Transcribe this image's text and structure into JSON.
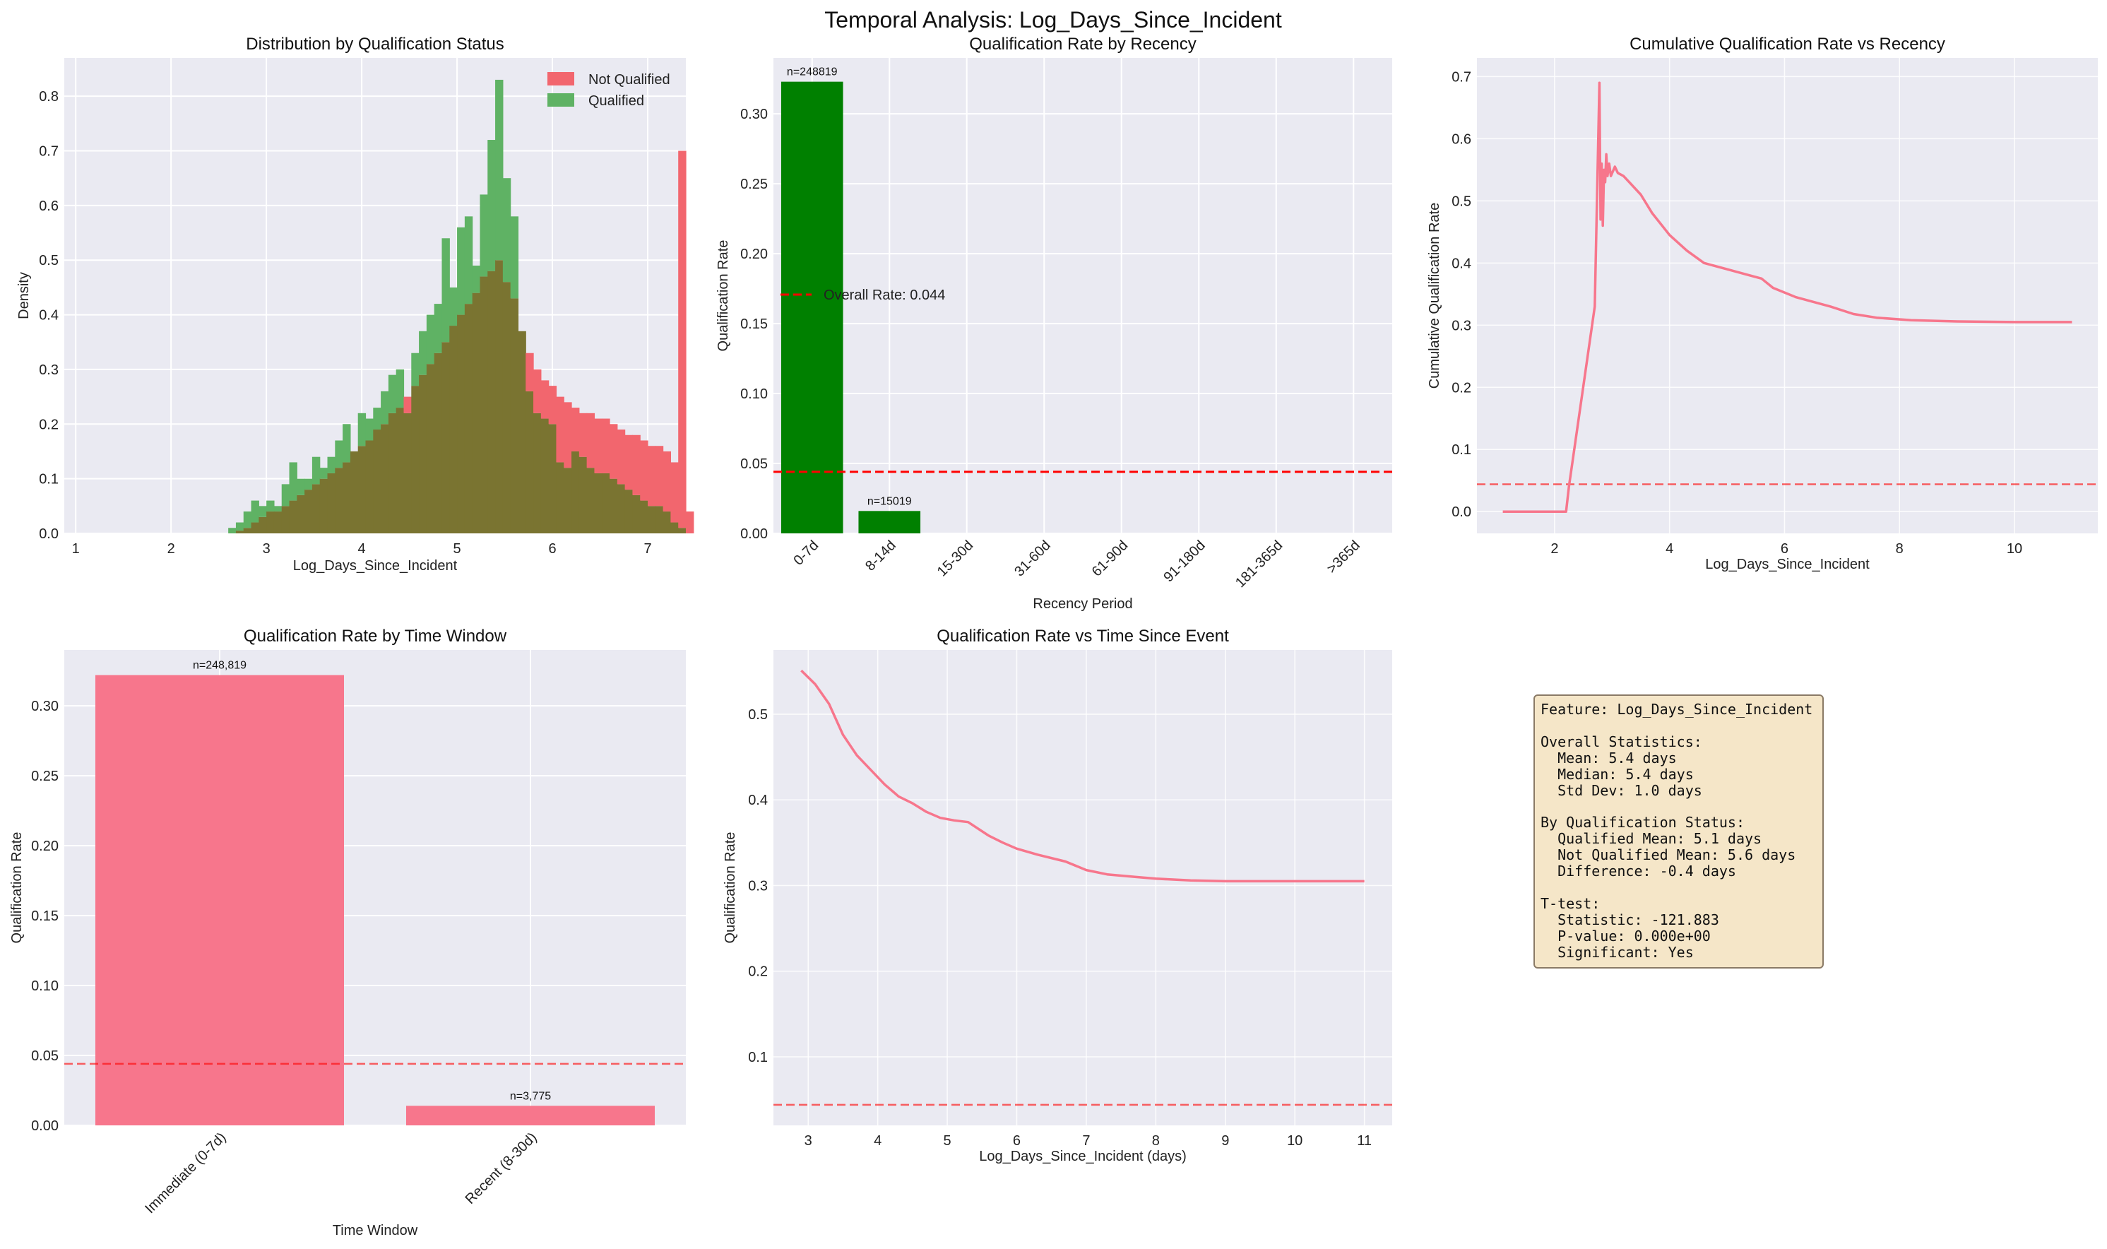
{
  "figure": {
    "title": "Temporal Analysis: Log_Days_Since_Incident",
    "colors": {
      "panel_bg": "#eaeaf2",
      "grid": "#ffffff",
      "pink": "#f7768c",
      "green": "#008000",
      "red": "#ff0000",
      "hist_not_qualified": "#f2666e",
      "hist_qualified": "#5fb264",
      "hist_overlap": "#7a7431",
      "stats_box_bg": "#f5e6c8"
    }
  },
  "chart_data": [
    {
      "id": "distribution",
      "type": "histogram",
      "title": "Distribution by Qualification Status",
      "xlabel": "Log_Days_Since_Incident",
      "ylabel": "Density",
      "xlim": [
        0.88,
        7.4
      ],
      "ylim": [
        0,
        0.87
      ],
      "xticks": [
        1,
        2,
        3,
        4,
        5,
        6,
        7
      ],
      "yticks": [
        0.0,
        0.1,
        0.2,
        0.3,
        0.4,
        0.5,
        0.6,
        0.7,
        0.8
      ],
      "legend_position": "top-right",
      "bin_start": 2.6,
      "bin_width": 0.08,
      "series": [
        {
          "name": "Not Qualified",
          "color": "#f2666e",
          "values": [
            0.0,
            0.005,
            0.01,
            0.02,
            0.03,
            0.04,
            0.04,
            0.05,
            0.06,
            0.07,
            0.08,
            0.09,
            0.1,
            0.11,
            0.12,
            0.13,
            0.15,
            0.16,
            0.17,
            0.19,
            0.2,
            0.22,
            0.23,
            0.25,
            0.27,
            0.29,
            0.31,
            0.33,
            0.35,
            0.38,
            0.4,
            0.42,
            0.44,
            0.47,
            0.48,
            0.5,
            0.46,
            0.43,
            0.37,
            0.33,
            0.3,
            0.28,
            0.27,
            0.25,
            0.24,
            0.23,
            0.22,
            0.22,
            0.21,
            0.21,
            0.2,
            0.19,
            0.18,
            0.18,
            0.17,
            0.16,
            0.16,
            0.15,
            0.13,
            0.7,
            0.04
          ]
        },
        {
          "name": "Qualified",
          "color": "#5fb264",
          "values": [
            0.01,
            0.02,
            0.04,
            0.06,
            0.05,
            0.06,
            0.05,
            0.09,
            0.13,
            0.1,
            0.1,
            0.14,
            0.12,
            0.14,
            0.17,
            0.2,
            0.15,
            0.22,
            0.21,
            0.23,
            0.26,
            0.29,
            0.3,
            0.22,
            0.33,
            0.37,
            0.4,
            0.42,
            0.54,
            0.45,
            0.56,
            0.58,
            0.49,
            0.62,
            0.72,
            0.83,
            0.65,
            0.58,
            0.37,
            0.26,
            0.22,
            0.21,
            0.2,
            0.13,
            0.12,
            0.15,
            0.14,
            0.12,
            0.11,
            0.11,
            0.1,
            0.09,
            0.08,
            0.07,
            0.06,
            0.05,
            0.05,
            0.04,
            0.02,
            0.01,
            0.0
          ]
        }
      ]
    },
    {
      "id": "rate_by_recency",
      "type": "bar",
      "title": "Qualification Rate by Recency",
      "xlabel": "Recency Period",
      "ylabel": "Qualification Rate",
      "categories": [
        "0-7d",
        "8-14d",
        "15-30d",
        "31-60d",
        "61-90d",
        "91-180d",
        "181-365d",
        ">365d"
      ],
      "values": [
        0.323,
        0.016,
        0,
        0,
        0,
        0,
        0,
        0
      ],
      "bar_labels": [
        "n=248819",
        "n=15019",
        "",
        "",
        "",
        "",
        "",
        ""
      ],
      "ylim": [
        0,
        0.34
      ],
      "yticks": [
        0.0,
        0.05,
        0.1,
        0.15,
        0.2,
        0.25,
        0.3
      ],
      "reference_line": {
        "value": 0.044,
        "label": "Overall Rate: 0.044",
        "color": "#ff0000",
        "style": "dashed"
      },
      "legend_position": "center-left",
      "color": "#008000"
    },
    {
      "id": "cumulative_rate",
      "type": "line",
      "title": "Cumulative Qualification Rate vs Recency",
      "xlabel": "Log_Days_Since_Incident",
      "ylabel": "Cumulative Qualification Rate",
      "xlim": [
        0.65,
        11.45
      ],
      "ylim": [
        -0.035,
        0.73
      ],
      "xticks": [
        2,
        4,
        6,
        8,
        10
      ],
      "yticks": [
        0.0,
        0.1,
        0.2,
        0.3,
        0.4,
        0.5,
        0.6,
        0.7
      ],
      "reference_line": {
        "value": 0.044,
        "style": "dashed"
      },
      "x": [
        1.1,
        1.8,
        2.2,
        2.25,
        2.7,
        2.78,
        2.8,
        2.82,
        2.84,
        2.86,
        2.88,
        2.9,
        2.92,
        2.95,
        2.98,
        3.05,
        3.1,
        3.2,
        3.3,
        3.5,
        3.7,
        4.0,
        4.3,
        4.6,
        5.0,
        5.4,
        5.6,
        5.8,
        6.2,
        6.8,
        7.2,
        7.6,
        8.2,
        9.0,
        10.0,
        11.0
      ],
      "y": [
        0.0,
        0.0,
        0.0,
        0.04,
        0.33,
        0.69,
        0.47,
        0.56,
        0.46,
        0.55,
        0.53,
        0.575,
        0.54,
        0.56,
        0.54,
        0.555,
        0.545,
        0.54,
        0.53,
        0.51,
        0.48,
        0.445,
        0.42,
        0.4,
        0.39,
        0.38,
        0.375,
        0.36,
        0.345,
        0.33,
        0.318,
        0.312,
        0.308,
        0.306,
        0.305,
        0.305
      ]
    },
    {
      "id": "rate_by_window",
      "type": "bar",
      "title": "Qualification Rate by Time Window",
      "xlabel": "Time Window",
      "ylabel": "Qualification Rate",
      "categories": [
        "Immediate (0-7d)",
        "Recent (8-30d)"
      ],
      "values": [
        0.322,
        0.014
      ],
      "bar_labels": [
        "n=248,819",
        "n=3,775"
      ],
      "ylim": [
        0,
        0.34
      ],
      "yticks": [
        0.0,
        0.05,
        0.1,
        0.15,
        0.2,
        0.25,
        0.3
      ],
      "reference_line": {
        "value": 0.044,
        "style": "dashed"
      },
      "color": "#f7768c"
    },
    {
      "id": "rate_vs_time",
      "type": "line",
      "title": "Qualification Rate vs Time Since Event",
      "xlabel": "Log_Days_Since_Incident (days)",
      "ylabel": "Qualification Rate",
      "xlim": [
        2.5,
        11.4
      ],
      "ylim": [
        0.02,
        0.575
      ],
      "xticks": [
        3,
        4,
        5,
        6,
        7,
        8,
        9,
        10,
        11
      ],
      "yticks": [
        0.1,
        0.2,
        0.3,
        0.4,
        0.5
      ],
      "reference_line": {
        "value": 0.044,
        "style": "dashed"
      },
      "x": [
        2.9,
        3.1,
        3.3,
        3.5,
        3.7,
        3.9,
        4.1,
        4.3,
        4.5,
        4.7,
        4.9,
        5.1,
        5.3,
        5.6,
        5.8,
        6.0,
        6.3,
        6.7,
        7.0,
        7.3,
        7.7,
        8.0,
        8.5,
        9.0,
        9.5,
        10.0,
        10.5,
        11.0
      ],
      "y": [
        0.551,
        0.535,
        0.512,
        0.476,
        0.452,
        0.435,
        0.418,
        0.404,
        0.396,
        0.386,
        0.379,
        0.376,
        0.374,
        0.358,
        0.35,
        0.343,
        0.336,
        0.328,
        0.318,
        0.313,
        0.31,
        0.308,
        0.306,
        0.305,
        0.305,
        0.305,
        0.305,
        0.305
      ]
    }
  ],
  "stats_box": {
    "lines": [
      "Feature: Log_Days_Since_Incident",
      "",
      "Overall Statistics:",
      "  Mean: 5.4 days",
      "  Median: 5.4 days",
      "  Std Dev: 1.0 days",
      "",
      "By Qualification Status:",
      "  Qualified Mean: 5.1 days",
      "  Not Qualified Mean: 5.6 days",
      "  Difference: -0.4 days",
      "",
      "T-test:",
      "  Statistic: -121.883",
      "  P-value: 0.000e+00",
      "  Significant: Yes"
    ]
  }
}
